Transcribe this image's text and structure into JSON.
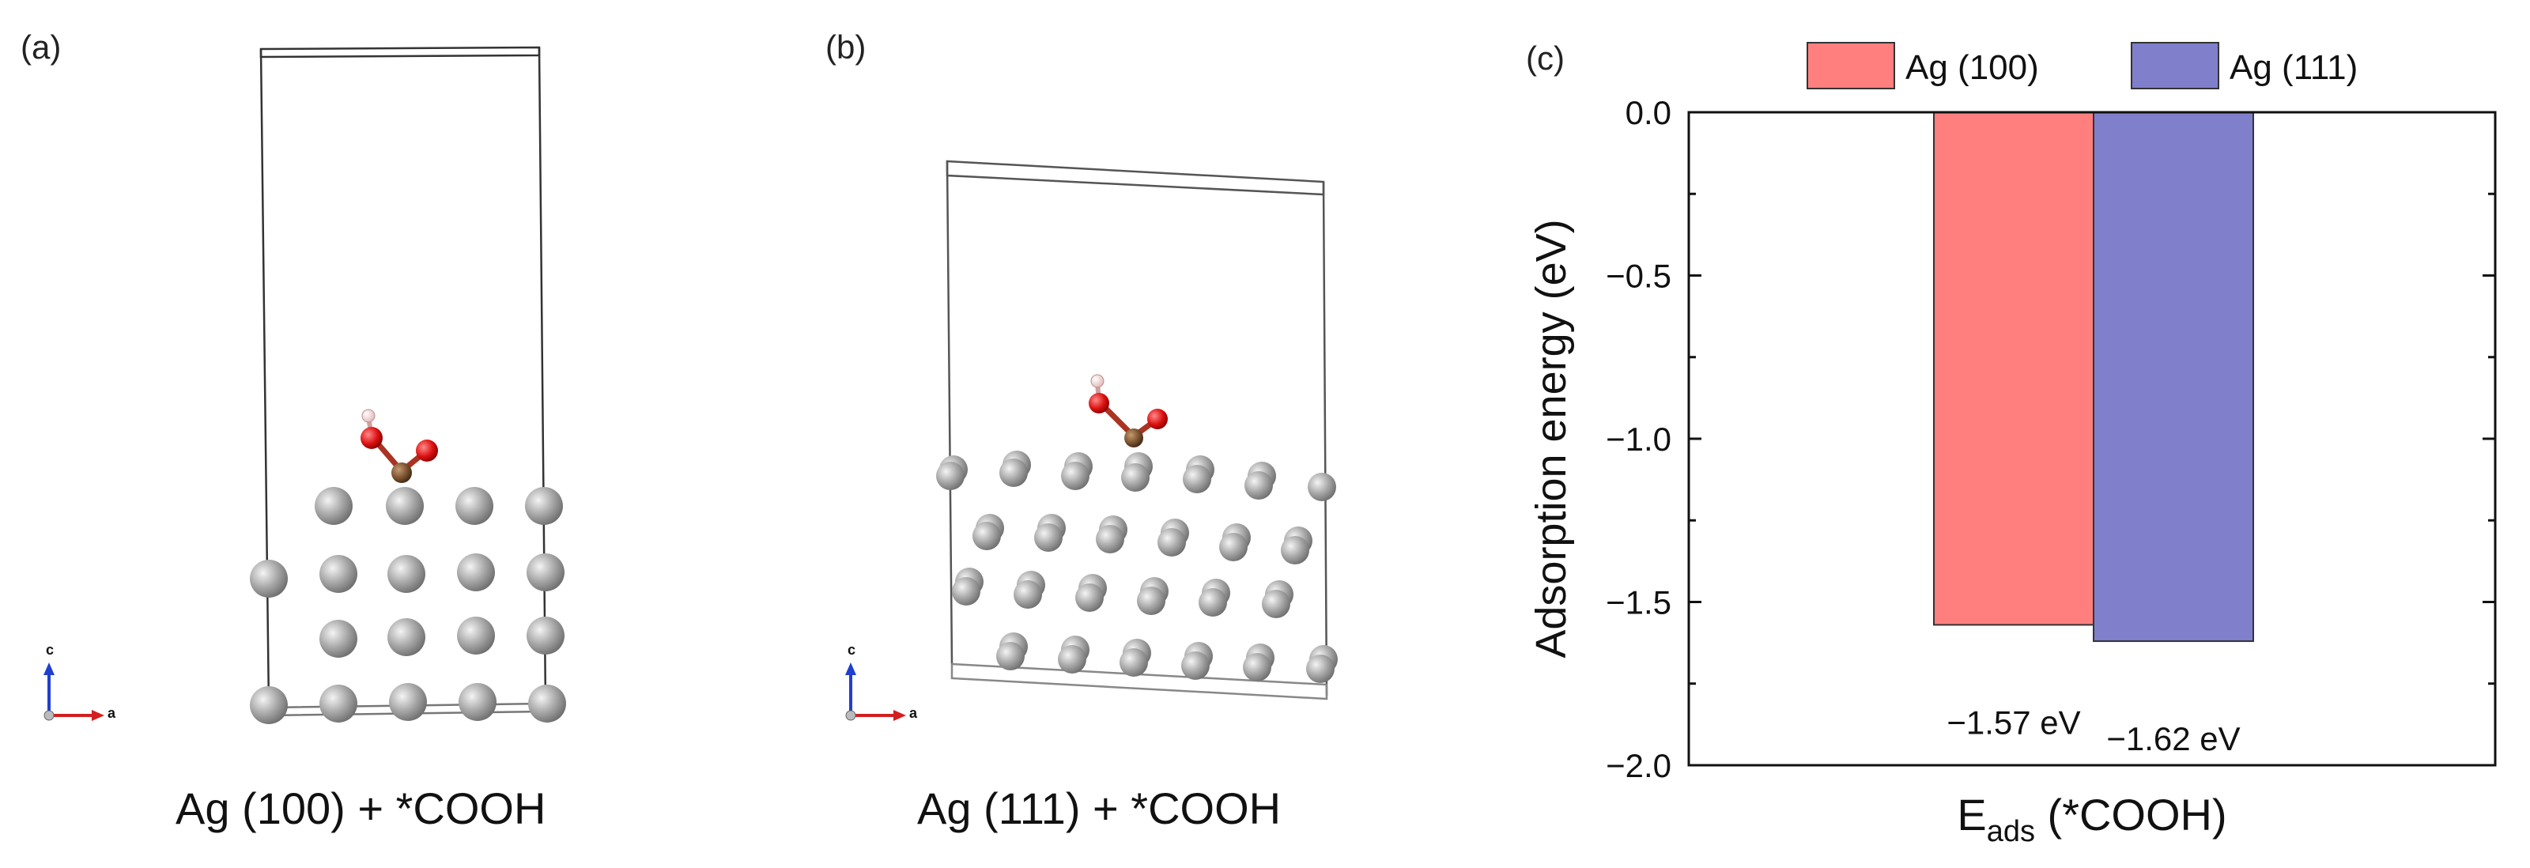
{
  "panels": {
    "a": {
      "label": "(a)",
      "caption": "Ag (100) + *COOH"
    },
    "b": {
      "label": "(b)",
      "caption": "Ag (111) + *COOH"
    },
    "c": {
      "label": "(c)"
    }
  },
  "axis_triad": {
    "c_label": "c",
    "a_label": "a"
  },
  "colors": {
    "ag100": "#FF7F7F",
    "ag111": "#7F7FCC",
    "silver": "#9A9A9A",
    "oxygen": "#DD1111",
    "carbon": "#7A5230",
    "hydrogen": "#F2CFCF"
  },
  "chart_data": {
    "type": "bar",
    "categories": [
      "Ag (100)",
      "Ag (111)"
    ],
    "values": [
      -1.57,
      -1.62
    ],
    "data_labels": [
      "−1.57 eV",
      "−1.62 eV"
    ],
    "ylabel": "Adsorption energy (eV)",
    "xlabel_main": "E",
    "xlabel_sub": "ads",
    "xlabel_rest": " (*COOH)",
    "ylim": [
      -2.0,
      0.0
    ],
    "yticks": [
      0.0,
      -0.5,
      -1.0,
      -1.5,
      -2.0
    ],
    "ytick_labels": [
      "0.0",
      "−0.5",
      "−1.0",
      "−1.5",
      "−2.0"
    ],
    "legend": [
      {
        "name": "Ag (100)",
        "color": "#FF7F7F"
      },
      {
        "name": "Ag (111)",
        "color": "#7F7FCC"
      }
    ],
    "legend_position": "top-center",
    "grid": false
  }
}
